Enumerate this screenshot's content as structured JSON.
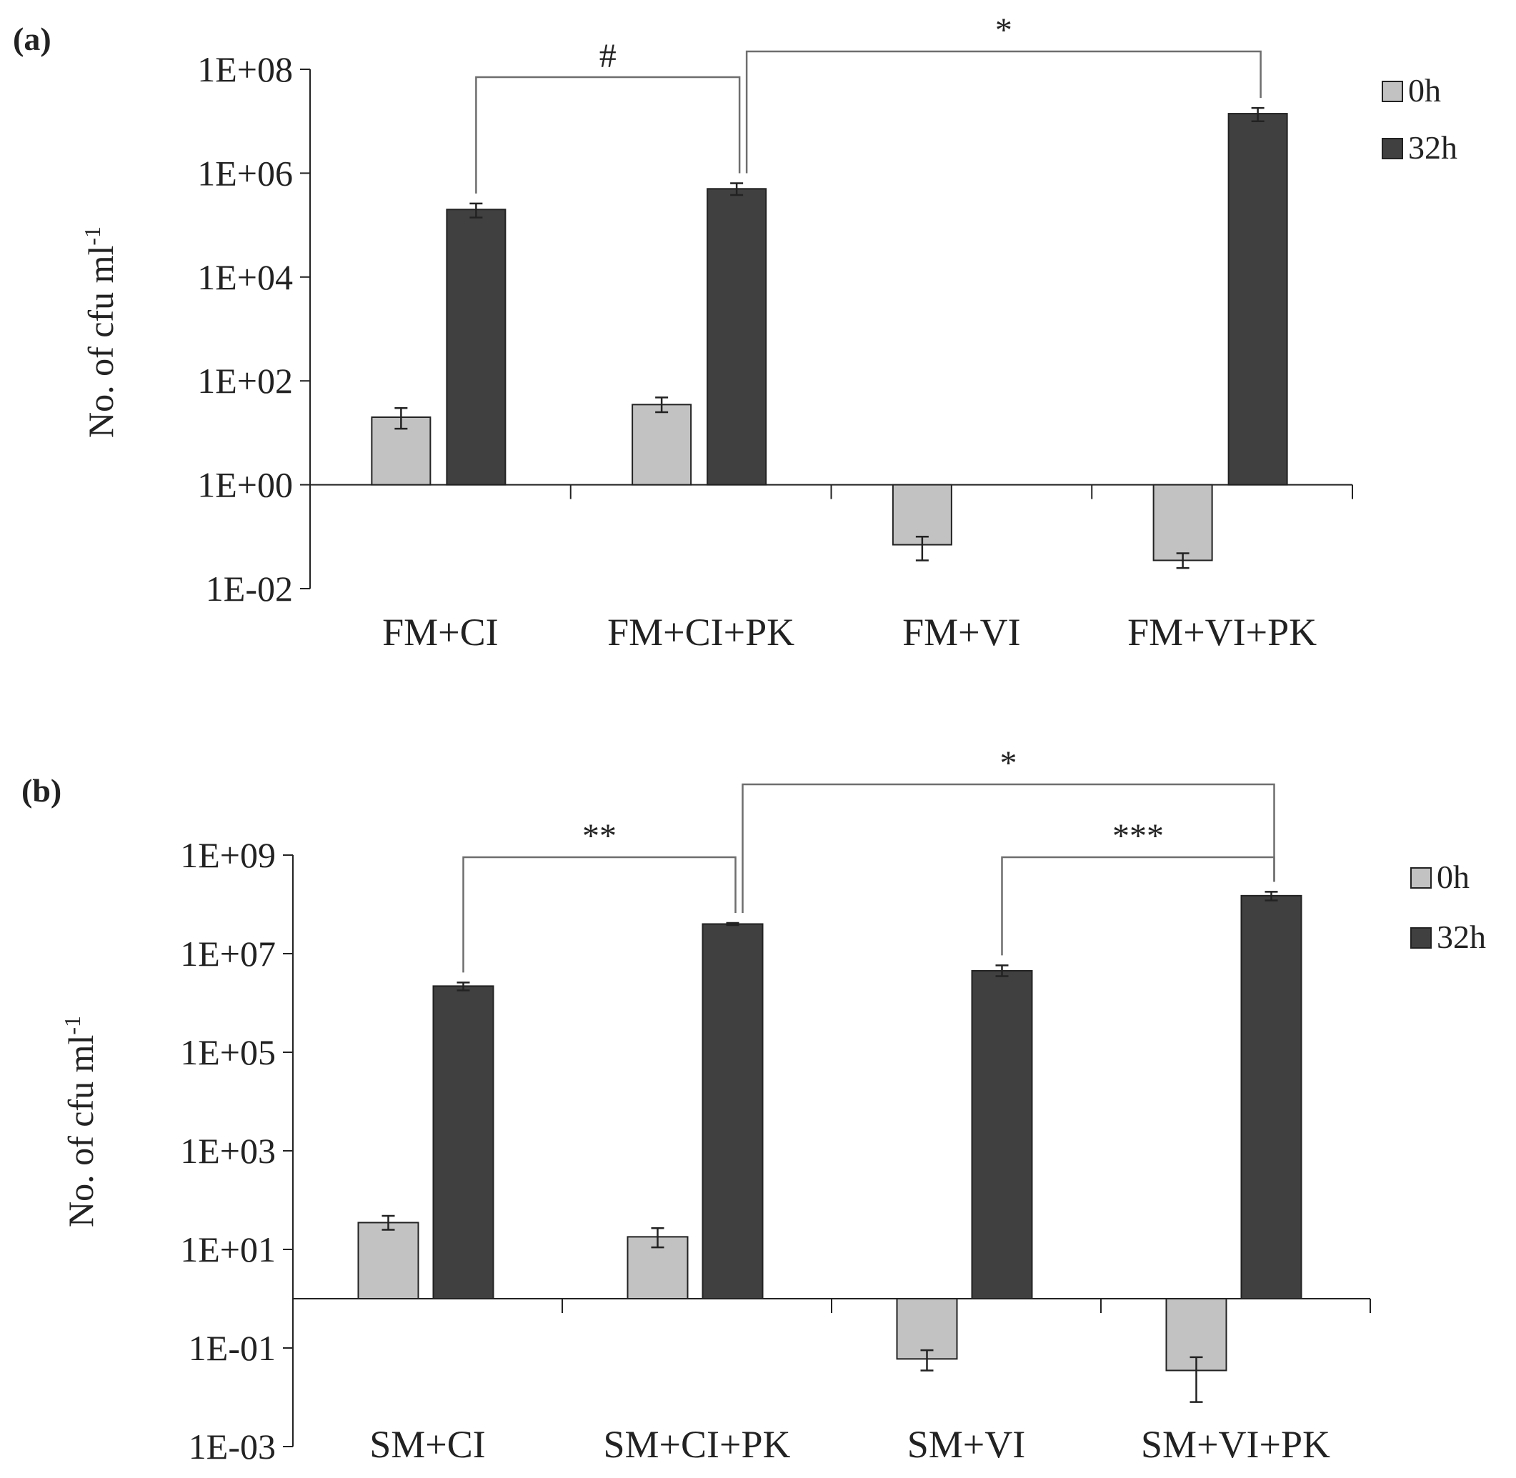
{
  "colors": {
    "bar_0h": "#c2c2c2",
    "bar_32h": "#404040",
    "outline": "#222222",
    "bracket": "#6e6e6e"
  },
  "chart_data": [
    {
      "panel_label": "(a)",
      "type": "bar",
      "scale": "log10",
      "ylabel_main": "No. of  cfu ml",
      "ylabel_sup": "-1",
      "ylim": [
        0.01,
        100000000
      ],
      "baseline": 1,
      "yticks": [
        {
          "value": 0.01,
          "label": "1E-02"
        },
        {
          "value": 1,
          "label": "1E+00"
        },
        {
          "value": 100,
          "label": "1E+02"
        },
        {
          "value": 10000,
          "label": "1E+04"
        },
        {
          "value": 1000000,
          "label": "1E+06"
        },
        {
          "value": 100000000,
          "label": "1E+08"
        }
      ],
      "categories": [
        "FM+CI",
        "FM+CI+PK",
        "FM+VI",
        "FM+VI+PK"
      ],
      "legend": {
        "position": "top-right",
        "entries": [
          "0h",
          "32h"
        ]
      },
      "series": [
        {
          "name": "0h",
          "values": [
            20,
            35,
            0.07,
            0.035
          ],
          "error_low": [
            12,
            25,
            0.035,
            0.025
          ],
          "error_high": [
            30,
            48,
            0.1,
            0.048
          ]
        },
        {
          "name": "32h",
          "values": [
            200000,
            500000,
            null,
            14000000
          ],
          "error_low": [
            140000,
            380000,
            null,
            10000000
          ],
          "error_high": [
            260000,
            640000,
            null,
            18000000
          ]
        }
      ],
      "significance": [
        {
          "label": "#",
          "from": [
            0,
            "32h"
          ],
          "to": [
            1,
            "32h"
          ],
          "level": 1
        },
        {
          "label": "*",
          "from": [
            1,
            "32h"
          ],
          "to": [
            3,
            "32h"
          ],
          "level": 2
        }
      ]
    },
    {
      "panel_label": "(b)",
      "type": "bar",
      "scale": "log10",
      "ylabel_main": "No. of cfu ml",
      "ylabel_sup": "-1",
      "ylim": [
        0.001,
        1000000000
      ],
      "baseline": 1,
      "yticks": [
        {
          "value": 0.001,
          "label": "1E-03"
        },
        {
          "value": 0.1,
          "label": "1E-01"
        },
        {
          "value": 10,
          "label": "1E+01"
        },
        {
          "value": 1000,
          "label": "1E+03"
        },
        {
          "value": 100000,
          "label": "1E+05"
        },
        {
          "value": 10000000,
          "label": "1E+07"
        },
        {
          "value": 1000000000,
          "label": "1E+09"
        }
      ],
      "categories": [
        "SM+CI",
        "SM+CI+PK",
        "SM+VI",
        "SM+VI+PK"
      ],
      "legend": {
        "position": "top-right",
        "entries": [
          "0h",
          "32h"
        ]
      },
      "series": [
        {
          "name": "0h",
          "values": [
            35,
            18,
            0.06,
            0.035
          ],
          "error_low": [
            25,
            11,
            0.035,
            0.008
          ],
          "error_high": [
            48,
            27,
            0.09,
            0.065
          ]
        },
        {
          "name": "32h",
          "values": [
            2200000,
            40000000,
            4500000,
            150000000
          ],
          "error_low": [
            1800000,
            38000000,
            3500000,
            120000000
          ],
          "error_high": [
            2600000,
            42000000,
            5800000,
            180000000
          ]
        }
      ],
      "significance": [
        {
          "label": "**",
          "from": [
            0,
            "32h"
          ],
          "to": [
            1,
            "32h"
          ],
          "level": 1
        },
        {
          "label": "*",
          "from": [
            1,
            "32h"
          ],
          "to": [
            3,
            "32h"
          ],
          "level": 2
        },
        {
          "label": "***",
          "from": [
            2,
            "32h"
          ],
          "to": [
            3,
            "32h"
          ],
          "level": 1
        }
      ]
    }
  ]
}
